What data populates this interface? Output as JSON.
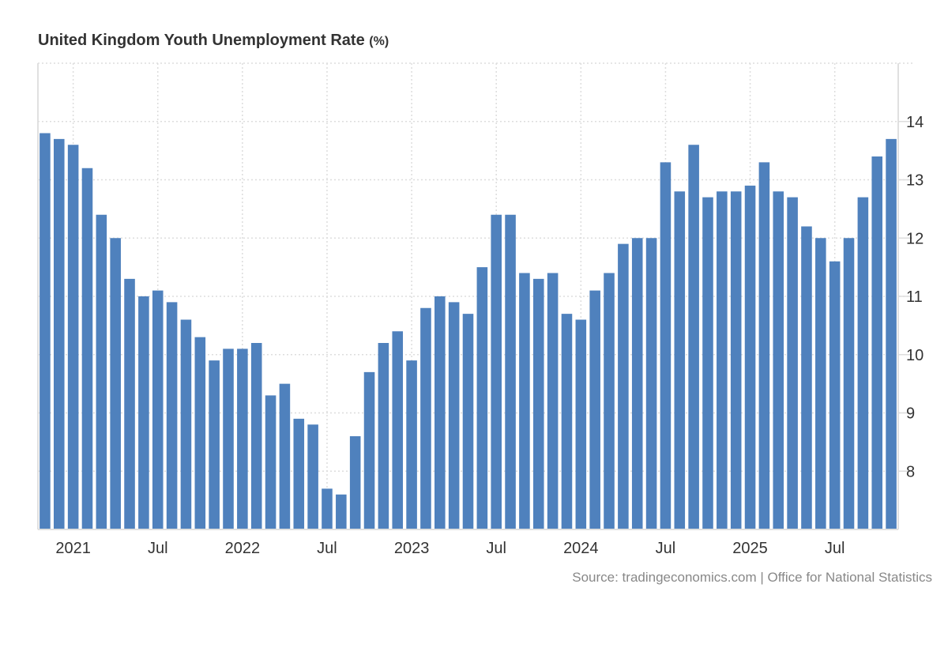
{
  "title": "United Kingdom Youth Unemployment Rate",
  "unit": "(%)",
  "source": "Source: tradingeconomics.com | Office for National Statistics",
  "chart_data": {
    "type": "bar",
    "title": "United Kingdom Youth Unemployment Rate (%)",
    "xlabel": "",
    "ylabel": "",
    "ylim": [
      7,
      15
    ],
    "grid": true,
    "y_axis_side": "right",
    "bar_color": "#4f81bd",
    "categories": [
      "Nov 2020",
      "Dec 2020",
      "Jan 2021",
      "Feb 2021",
      "Mar 2021",
      "Apr 2021",
      "May 2021",
      "Jun 2021",
      "Jul 2021",
      "Aug 2021",
      "Sep 2021",
      "Oct 2021",
      "Nov 2021",
      "Dec 2021",
      "Jan 2022",
      "Feb 2022",
      "Mar 2022",
      "Apr 2022",
      "May 2022",
      "Jun 2022",
      "Jul 2022",
      "Aug 2022",
      "Sep 2022",
      "Oct 2022",
      "Nov 2022",
      "Dec 2022",
      "Jan 2023",
      "Feb 2023",
      "Mar 2023",
      "Apr 2023",
      "May 2023",
      "Jun 2023",
      "Jul 2023",
      "Aug 2023",
      "Sep 2023",
      "Oct 2023",
      "Nov 2023",
      "Dec 2023",
      "Jan 2024",
      "Feb 2024",
      "Mar 2024",
      "Apr 2024",
      "May 2024",
      "Jun 2024",
      "Jul 2024",
      "Aug 2024",
      "Sep 2024",
      "Oct 2024",
      "Nov 2024",
      "Dec 2024",
      "Jan 2025",
      "Feb 2025",
      "Mar 2025",
      "Apr 2025",
      "May 2025",
      "Jun 2025",
      "Jul 2025",
      "Aug 2025",
      "Sep 2025",
      "Oct 2025",
      "Nov 2025"
    ],
    "values": [
      13.8,
      13.7,
      13.6,
      13.2,
      12.4,
      12.0,
      11.3,
      11.0,
      11.1,
      10.9,
      10.6,
      10.3,
      9.9,
      10.1,
      10.1,
      10.2,
      9.3,
      9.5,
      8.9,
      8.8,
      7.7,
      7.6,
      8.6,
      9.7,
      10.2,
      10.4,
      9.9,
      10.8,
      11.0,
      10.9,
      10.7,
      11.5,
      12.4,
      12.4,
      11.4,
      11.3,
      11.4,
      10.7,
      10.6,
      11.1,
      11.4,
      11.9,
      12.0,
      12.0,
      13.3,
      12.8,
      13.6,
      12.7,
      12.8,
      12.8,
      12.9,
      13.3,
      12.8,
      12.7,
      12.2,
      12.0,
      11.6,
      12.0,
      12.7,
      13.4,
      13.7
    ],
    "y_ticks": [
      8,
      9,
      10,
      11,
      12,
      13,
      14
    ],
    "x_ticks": [
      {
        "category": "Jan 2021",
        "label": "2021"
      },
      {
        "category": "Jul 2021",
        "label": "Jul"
      },
      {
        "category": "Jan 2022",
        "label": "2022"
      },
      {
        "category": "Jul 2022",
        "label": "Jul"
      },
      {
        "category": "Jan 2023",
        "label": "2023"
      },
      {
        "category": "Jul 2023",
        "label": "Jul"
      },
      {
        "category": "Jan 2024",
        "label": "2024"
      },
      {
        "category": "Jul 2024",
        "label": "Jul"
      },
      {
        "category": "Jan 2025",
        "label": "2025"
      },
      {
        "category": "Jul 2025",
        "label": "Jul"
      }
    ]
  }
}
